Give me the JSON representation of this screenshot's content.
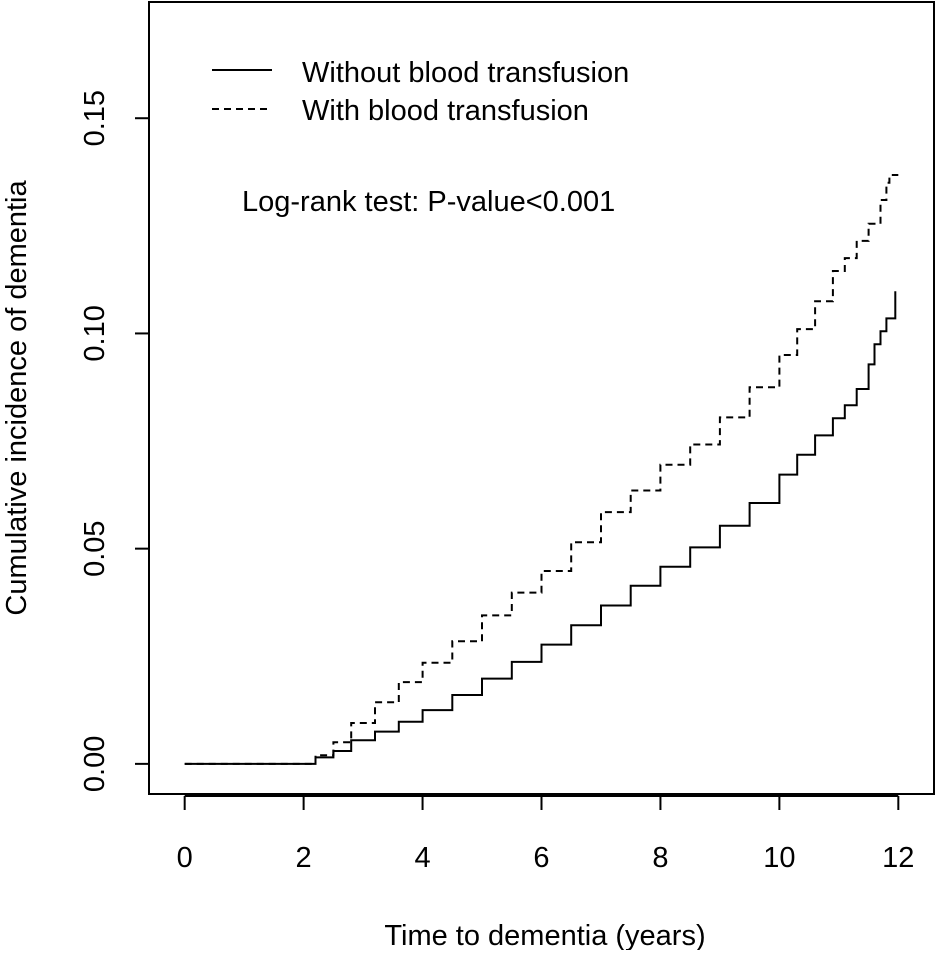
{
  "chart_data": {
    "type": "line",
    "title": "",
    "xlabel": "Time to dementia (years)",
    "ylabel": "Cumulative incidence of dementia",
    "xlim": [
      -0.6,
      12.6
    ],
    "ylim": [
      -0.007,
      0.177
    ],
    "xticks": [
      0,
      2,
      4,
      6,
      8,
      10,
      12
    ],
    "xtick_labels": [
      "0",
      "2",
      "4",
      "6",
      "8",
      "10",
      "12"
    ],
    "yticks": [
      0.0,
      0.05,
      0.1,
      0.15
    ],
    "ytick_labels": [
      "0.00",
      "0.05",
      "0.10",
      "0.15"
    ],
    "grid": false,
    "legend_position": "top-left",
    "annotation": "Log-rank test: P-value<0.001",
    "series": [
      {
        "name": "Without blood transfusion",
        "style": "solid",
        "color": "#000000",
        "x": [
          0,
          2.0,
          2.2,
          2.5,
          2.8,
          3.2,
          3.6,
          4.0,
          4.5,
          5.0,
          5.5,
          6.0,
          6.5,
          7.0,
          7.5,
          8.0,
          8.5,
          9.0,
          9.5,
          10.0,
          10.3,
          10.6,
          10.9,
          11.1,
          11.3,
          11.5,
          11.6,
          11.7,
          11.8,
          11.95
        ],
        "y": [
          0,
          0,
          0.0015,
          0.003,
          0.0055,
          0.0075,
          0.0098,
          0.0125,
          0.016,
          0.0198,
          0.0237,
          0.0277,
          0.0322,
          0.0368,
          0.0414,
          0.0458,
          0.0503,
          0.0553,
          0.0606,
          0.0672,
          0.0718,
          0.0763,
          0.0803,
          0.0833,
          0.0871,
          0.0928,
          0.0975,
          0.1005,
          0.1035,
          0.1098
        ]
      },
      {
        "name": "With blood transfusion",
        "style": "dashed",
        "color": "#000000",
        "x": [
          0,
          2.0,
          2.2,
          2.5,
          2.8,
          3.2,
          3.6,
          4.0,
          4.5,
          5.0,
          5.5,
          6.0,
          6.5,
          7.0,
          7.5,
          8.0,
          8.5,
          9.0,
          9.5,
          10.0,
          10.3,
          10.6,
          10.9,
          11.1,
          11.3,
          11.5,
          11.7,
          11.8,
          11.85,
          12.0
        ],
        "y": [
          0,
          0,
          0.002,
          0.005,
          0.0095,
          0.0143,
          0.019,
          0.0235,
          0.0285,
          0.0345,
          0.0398,
          0.0448,
          0.0515,
          0.0585,
          0.0635,
          0.0695,
          0.0742,
          0.0805,
          0.0875,
          0.095,
          0.101,
          0.1075,
          0.1145,
          0.1175,
          0.1215,
          0.1255,
          0.131,
          0.135,
          0.1368,
          0.1368
        ]
      }
    ]
  }
}
